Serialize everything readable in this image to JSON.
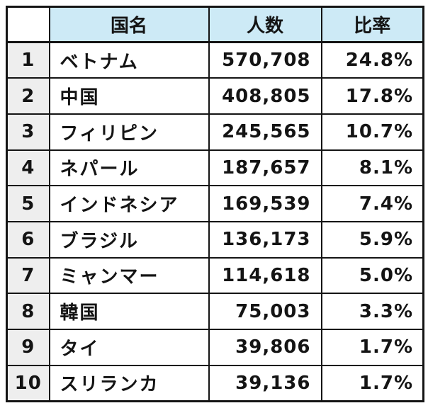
{
  "table": {
    "corner": "",
    "headers": {
      "country": "国名",
      "count": "人数",
      "ratio": "比率"
    },
    "rows": [
      {
        "rank": "1",
        "country": "ベトナム",
        "count": "570,708",
        "ratio": "24.8%"
      },
      {
        "rank": "2",
        "country": "中国",
        "count": "408,805",
        "ratio": "17.8%"
      },
      {
        "rank": "3",
        "country": "フィリピン",
        "count": "245,565",
        "ratio": "10.7%"
      },
      {
        "rank": "4",
        "country": "ネパール",
        "count": "187,657",
        "ratio": "8.1%"
      },
      {
        "rank": "5",
        "country": "インドネシア",
        "count": "169,539",
        "ratio": "7.4%"
      },
      {
        "rank": "6",
        "country": "ブラジル",
        "count": "136,173",
        "ratio": "5.9%"
      },
      {
        "rank": "7",
        "country": "ミャンマー",
        "count": "114,618",
        "ratio": "5.0%"
      },
      {
        "rank": "8",
        "country": "韓国",
        "count": "75,003",
        "ratio": "3.3%"
      },
      {
        "rank": "9",
        "country": "タイ",
        "count": "39,806",
        "ratio": "1.7%"
      },
      {
        "rank": "10",
        "country": "スリランカ",
        "count": "39,136",
        "ratio": "1.7%"
      }
    ]
  },
  "colors": {
    "header_bg": "#cdeaf6",
    "rank_bg": "#eeeeee",
    "border": "#141414",
    "text": "#141414",
    "page_bg": "#ffffff"
  },
  "chart_data": {
    "type": "table",
    "title": "",
    "columns": [
      "",
      "国名",
      "人数",
      "比率"
    ],
    "rows": [
      [
        "1",
        "ベトナム",
        570708,
        "24.8%"
      ],
      [
        "2",
        "中国",
        408805,
        "17.8%"
      ],
      [
        "3",
        "フィリピン",
        245565,
        "10.7%"
      ],
      [
        "4",
        "ネパール",
        187657,
        "8.1%"
      ],
      [
        "5",
        "インドネシア",
        169539,
        "7.4%"
      ],
      [
        "6",
        "ブラジル",
        136173,
        "5.9%"
      ],
      [
        "7",
        "ミャンマー",
        114618,
        "5.0%"
      ],
      [
        "8",
        "韓国",
        75003,
        "3.3%"
      ],
      [
        "9",
        "タイ",
        39806,
        "1.7%"
      ],
      [
        "10",
        "スリランカ",
        39136,
        "1.7%"
      ]
    ],
    "ratio_values_percent": [
      24.8,
      17.8,
      10.7,
      8.1,
      7.4,
      5.9,
      5.0,
      3.3,
      1.7,
      1.7
    ],
    "legend_position": "none",
    "grid": true
  }
}
